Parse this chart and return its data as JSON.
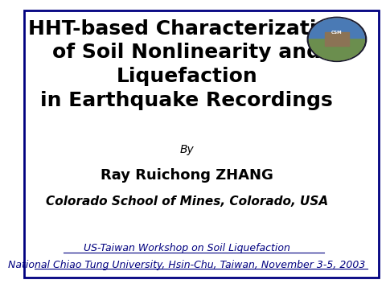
{
  "background_color": "#ffffff",
  "title_line1": "HHT-based Characterization",
  "title_line2": "of Soil Nonlinearity and",
  "title_line3": "Liquefaction",
  "title_line4": "in Earthquake Recordings",
  "title_fontsize": 18,
  "title_color": "#000000",
  "by_text": "By",
  "by_fontsize": 10,
  "author_text": "Ray Ruichong ZHANG",
  "author_fontsize": 13,
  "affiliation_text": "Colorado School of Mines, Colorado, USA",
  "affiliation_fontsize": 11,
  "workshop_line1": "US-Taiwan Workshop on Soil Liquefaction",
  "workshop_line2": "National Chiao Tung University, Hsin-Chu, Taiwan, November 3-5, 2003",
  "workshop_fontsize": 9,
  "bottom_color": "#000080",
  "border_color": "#000080",
  "border_linewidth": 2
}
